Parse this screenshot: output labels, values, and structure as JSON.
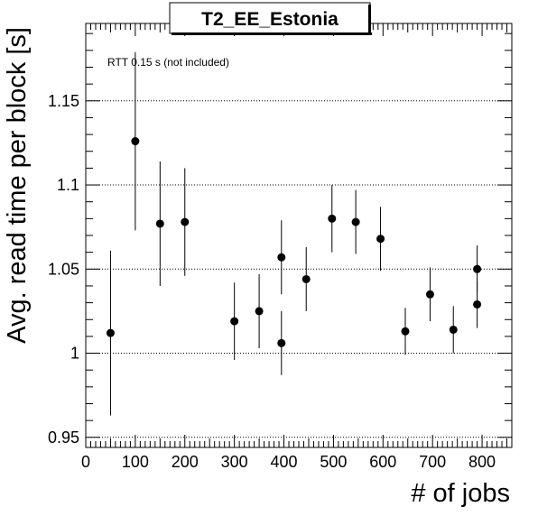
{
  "chart_data": {
    "type": "scatter",
    "title": "T2_EE_Estonia",
    "xlabel": "# of jobs",
    "ylabel": "Avg. read time per block [s]",
    "annotation": "RTT 0.15 s (not included)",
    "xlim": [
      0,
      860
    ],
    "ylim": [
      0.944,
      1.196
    ],
    "xticks": [
      0,
      100,
      200,
      300,
      400,
      500,
      600,
      700,
      800
    ],
    "yticks": [
      0.95,
      1.0,
      1.05,
      1.1,
      1.15
    ],
    "xtick_labels": [
      "0",
      "100",
      "200",
      "300",
      "400",
      "500",
      "600",
      "700",
      "800"
    ],
    "ytick_labels": [
      "0.95",
      "1",
      "1.05",
      "1.1",
      "1.15"
    ],
    "grid": "horizontal dotted",
    "points": [
      {
        "x": 50,
        "y": 1.012,
        "err": 0.049
      },
      {
        "x": 100,
        "y": 1.126,
        "err": 0.053
      },
      {
        "x": 150,
        "y": 1.077,
        "err": 0.037
      },
      {
        "x": 200,
        "y": 1.078,
        "err": 0.032
      },
      {
        "x": 300,
        "y": 1.019,
        "err": 0.023
      },
      {
        "x": 350,
        "y": 1.025,
        "err": 0.022
      },
      {
        "x": 395,
        "y": 1.057,
        "err": 0.022
      },
      {
        "x": 395,
        "y": 1.006,
        "err": 0.019
      },
      {
        "x": 445,
        "y": 1.044,
        "err": 0.019
      },
      {
        "x": 497,
        "y": 1.08,
        "err": 0.02
      },
      {
        "x": 545,
        "y": 1.078,
        "err": 0.019
      },
      {
        "x": 595,
        "y": 1.068,
        "err": 0.019
      },
      {
        "x": 645,
        "y": 1.013,
        "err": 0.014
      },
      {
        "x": 695,
        "y": 1.035,
        "err": 0.016
      },
      {
        "x": 742,
        "y": 1.014,
        "err": 0.014
      },
      {
        "x": 790,
        "y": 1.05,
        "err": 0.014
      },
      {
        "x": 790,
        "y": 1.029,
        "err": 0.014
      }
    ]
  }
}
